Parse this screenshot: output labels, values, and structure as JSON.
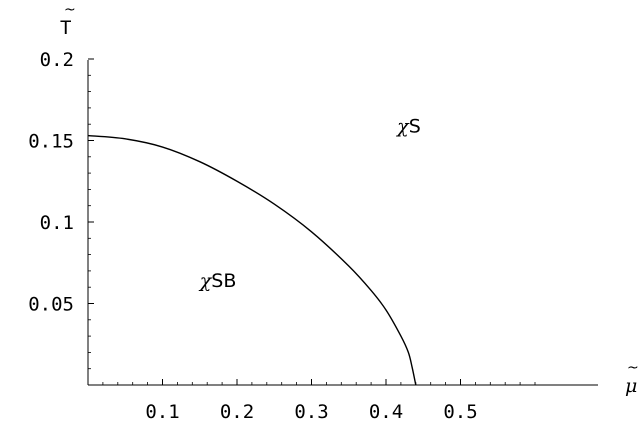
{
  "chart_data": {
    "type": "line",
    "xlabel": "μ",
    "ylabel": "T",
    "xlim": [
      0,
      0.6
    ],
    "ylim": [
      0,
      0.2
    ],
    "x_ticks": [
      "0.1",
      "0.2",
      "0.3",
      "0.4",
      "0.5"
    ],
    "y_ticks": [
      "0.05",
      "0.1",
      "0.15",
      "0.2"
    ],
    "x_tick_values": [
      0.1,
      0.2,
      0.3,
      0.4,
      0.5
    ],
    "y_tick_values": [
      0.05,
      0.1,
      0.15,
      0.2
    ],
    "series": [
      {
        "x": [
          0.0,
          0.05,
          0.1,
          0.15,
          0.2,
          0.25,
          0.3,
          0.35,
          0.38,
          0.4,
          0.42,
          0.43,
          0.435,
          0.44
        ],
        "y": [
          0.153,
          0.151,
          0.146,
          0.137,
          0.125,
          0.111,
          0.094,
          0.073,
          0.058,
          0.046,
          0.03,
          0.02,
          0.011,
          0.0
        ]
      }
    ],
    "annotations": [
      {
        "text": "χS",
        "x": 0.415,
        "y": 0.155
      },
      {
        "text": "χSB",
        "x": 0.15,
        "y": 0.06
      }
    ]
  }
}
